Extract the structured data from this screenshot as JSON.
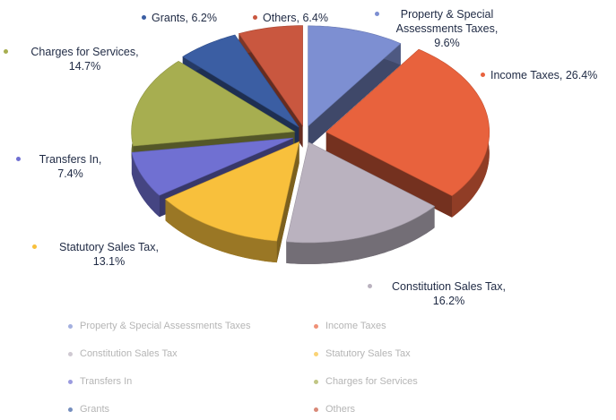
{
  "chart_data": {
    "type": "pie3d",
    "categories": [
      "Property & Special Assessments Taxes",
      "Income Taxes",
      "Constitution Sales Tax",
      "Statutory Sales Tax",
      "Transfers In",
      "Charges for Services",
      "Grants",
      "Others"
    ],
    "values": [
      9.6,
      26.4,
      16.2,
      13.1,
      7.4,
      14.7,
      6.2,
      6.4
    ],
    "value_labels": [
      "Property & Special Assessments Taxes, 9.6%",
      "Income Taxes, 26.4%",
      "Constitution Sales Tax, 16.2%",
      "Statutory Sales Tax, 13.1%",
      "Transfers In, 7.4%",
      "Charges for Services, 14.7%",
      "Grants, 6.2%",
      "Others, 6.4%"
    ],
    "colors": [
      "#7d8fd2",
      "#e8623d",
      "#bab2bf",
      "#f8c03c",
      "#7070d2",
      "#a7ae50",
      "#3b5ea3",
      "#c9573f"
    ],
    "legend": "bottom"
  }
}
